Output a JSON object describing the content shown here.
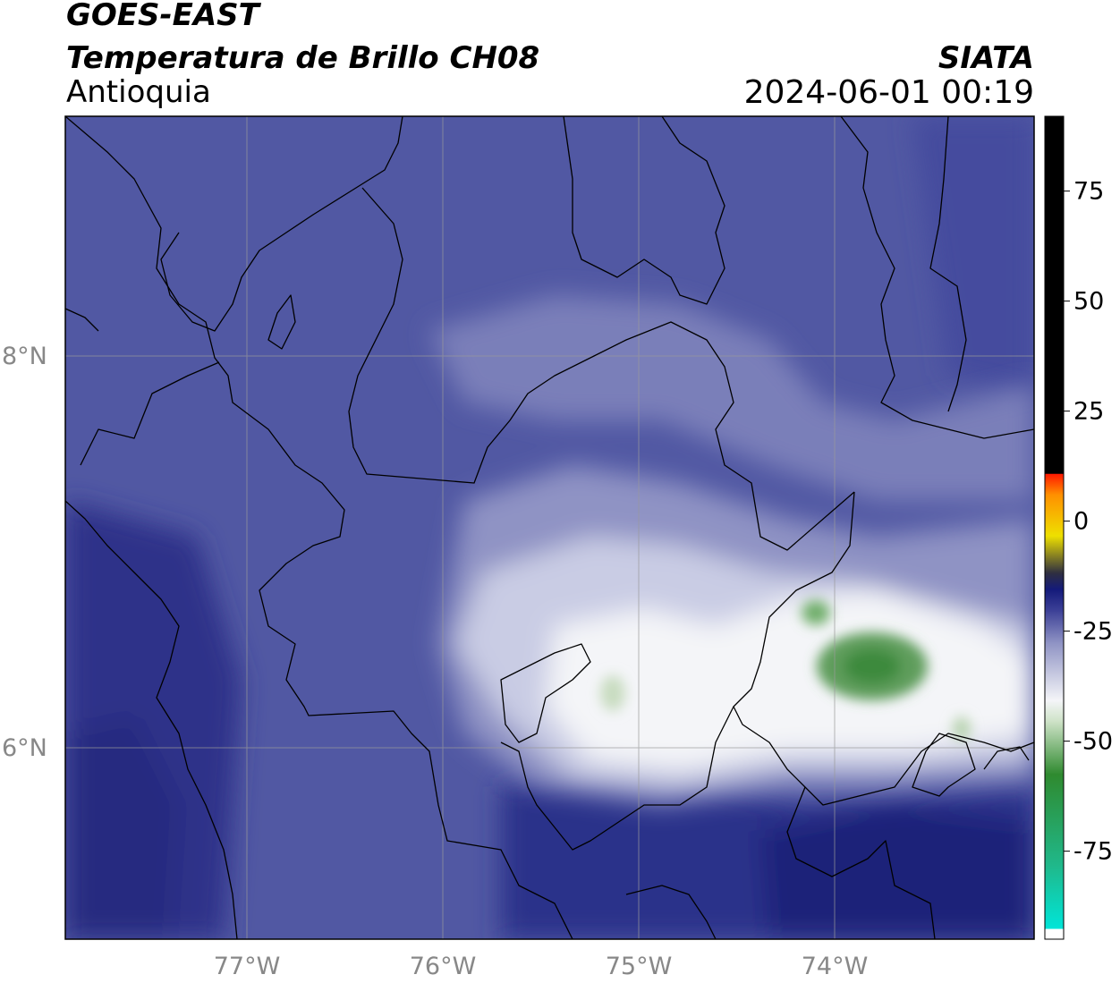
{
  "header": {
    "satellite": "GOES-EAST",
    "product": "Temperatura de Brillo CH08",
    "region": "Antioquia",
    "agency": "SIATA",
    "datetime": "2024-06-01 00:19"
  },
  "axes": {
    "lat_ticks": [
      "8°N",
      "6°N"
    ],
    "lon_ticks": [
      "77°W",
      "76°W",
      "75°W",
      "74°W"
    ],
    "lon_range": [
      -77.95,
      -73.0
    ],
    "lat_range": [
      5.05,
      9.25
    ],
    "grid": true
  },
  "colorbar": {
    "ticks": [
      "75",
      "50",
      "25",
      "0",
      "-25",
      "-50",
      "-75"
    ],
    "tick_values": [
      75,
      50,
      25,
      0,
      -25,
      -50,
      -75
    ],
    "range": [
      -95,
      92
    ],
    "unit": ""
  },
  "colors": {
    "background_field": "#5158a3",
    "warm_dark": "#2a2e86",
    "cloud_light": "#c9cce4",
    "cloud_white": "#f4f5f8",
    "cloud_cold_green": "#3c8a3c",
    "border_line": "#000000",
    "grid_line": "#9a9a9a"
  }
}
